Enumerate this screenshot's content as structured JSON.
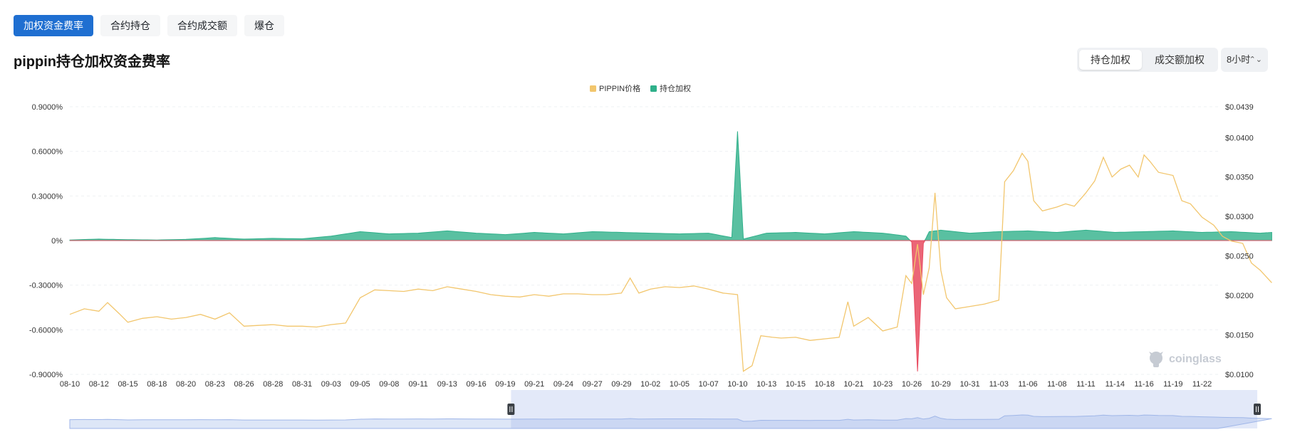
{
  "tabs": [
    "加权资金费率",
    "合约持仓",
    "合约成交额",
    "爆仓"
  ],
  "page_title": "pippin持仓加权资金费率",
  "weight_toggle": {
    "options": [
      "持仓加权",
      "成交额加权"
    ]
  },
  "interval": {
    "value": "8小时",
    "chevron_icon": "chevron-up-down-icon"
  },
  "watermark": {
    "text": "coinglass",
    "icon": "coinglass-logo-icon"
  },
  "colors": {
    "price": "#f2c66d",
    "rate_positive": "#2fb08a",
    "rate_negative": "#e84a5f",
    "active_tab": "#1f6fd1",
    "navigator": "#9fb6e8"
  },
  "chart_data": {
    "type": "area",
    "legend": [
      "PIPPIN价格",
      "持仓加权"
    ],
    "legend_position": "top-center",
    "grid": true,
    "y_left": {
      "ticks": [
        "0.9000%",
        "0.6000%",
        "0.3000%",
        "0%",
        "-0.3000%",
        "-0.6000%",
        "-0.9000%"
      ],
      "range": [
        -0.9,
        0.9
      ],
      "unit": "%"
    },
    "y_right": {
      "ticks": [
        "$0.0439",
        "$0.0400",
        "$0.0350",
        "$0.0300",
        "$0.0250",
        "$0.0200",
        "$0.0150",
        "$0.0100"
      ],
      "range": [
        0.01,
        0.0439
      ],
      "unit": "$"
    },
    "x_labels": [
      "08-10",
      "08-12",
      "08-15",
      "08-18",
      "08-20",
      "08-23",
      "08-26",
      "08-28",
      "08-31",
      "09-03",
      "09-05",
      "09-08",
      "09-11",
      "09-13",
      "09-16",
      "09-19",
      "09-21",
      "09-24",
      "09-27",
      "09-29",
      "10-02",
      "10-05",
      "10-07",
      "10-10",
      "10-13",
      "10-15",
      "10-18",
      "10-21",
      "10-23",
      "10-26",
      "10-29",
      "10-31",
      "11-03",
      "11-06",
      "11-08",
      "11-11",
      "11-14",
      "11-16",
      "11-19",
      "11-22"
    ],
    "series": [
      {
        "name": "PIPPIN价格",
        "axis": "right",
        "points": [
          [
            0,
            0.0176
          ],
          [
            0.5,
            0.0183
          ],
          [
            1,
            0.018
          ],
          [
            1.3,
            0.0191
          ],
          [
            1.7,
            0.0177
          ],
          [
            2,
            0.0166
          ],
          [
            2.5,
            0.0171
          ],
          [
            3,
            0.0173
          ],
          [
            3.5,
            0.017
          ],
          [
            4,
            0.0172
          ],
          [
            4.5,
            0.0176
          ],
          [
            5,
            0.017
          ],
          [
            5.5,
            0.0178
          ],
          [
            6,
            0.0161
          ],
          [
            6.5,
            0.0162
          ],
          [
            7,
            0.0163
          ],
          [
            7.5,
            0.0161
          ],
          [
            8,
            0.0161
          ],
          [
            8.5,
            0.016
          ],
          [
            9,
            0.0163
          ],
          [
            9.5,
            0.0165
          ],
          [
            10,
            0.0197
          ],
          [
            10.5,
            0.0207
          ],
          [
            11,
            0.0206
          ],
          [
            11.5,
            0.0205
          ],
          [
            12,
            0.0208
          ],
          [
            12.5,
            0.0206
          ],
          [
            13,
            0.0211
          ],
          [
            13.5,
            0.0208
          ],
          [
            14,
            0.0205
          ],
          [
            14.5,
            0.0201
          ],
          [
            15,
            0.0199
          ],
          [
            15.5,
            0.0198
          ],
          [
            16,
            0.0201
          ],
          [
            16.5,
            0.0199
          ],
          [
            17,
            0.0202
          ],
          [
            17.5,
            0.0202
          ],
          [
            18,
            0.0201
          ],
          [
            18.5,
            0.0201
          ],
          [
            19,
            0.0203
          ],
          [
            19.3,
            0.0222
          ],
          [
            19.6,
            0.0203
          ],
          [
            20,
            0.0208
          ],
          [
            20.5,
            0.0211
          ],
          [
            21,
            0.021
          ],
          [
            21.5,
            0.0212
          ],
          [
            22,
            0.0208
          ],
          [
            22.5,
            0.0203
          ],
          [
            23,
            0.0201
          ],
          [
            23.2,
            0.0104
          ],
          [
            23.5,
            0.0111
          ],
          [
            23.8,
            0.0149
          ],
          [
            24.2,
            0.0147
          ],
          [
            24.5,
            0.0146
          ],
          [
            25,
            0.0147
          ],
          [
            25.5,
            0.0143
          ],
          [
            26,
            0.0145
          ],
          [
            26.5,
            0.0147
          ],
          [
            26.8,
            0.0192
          ],
          [
            27,
            0.0161
          ],
          [
            27.5,
            0.0172
          ],
          [
            28,
            0.0155
          ],
          [
            28.5,
            0.016
          ],
          [
            28.8,
            0.0225
          ],
          [
            29,
            0.0215
          ],
          [
            29.2,
            0.0265
          ],
          [
            29.4,
            0.0201
          ],
          [
            29.6,
            0.0235
          ],
          [
            29.8,
            0.033
          ],
          [
            30,
            0.0232
          ],
          [
            30.2,
            0.0197
          ],
          [
            30.5,
            0.0183
          ],
          [
            31,
            0.0186
          ],
          [
            31.5,
            0.0189
          ],
          [
            32,
            0.0194
          ],
          [
            32.2,
            0.0344
          ],
          [
            32.5,
            0.0358
          ],
          [
            32.8,
            0.038
          ],
          [
            33,
            0.037
          ],
          [
            33.2,
            0.032
          ],
          [
            33.5,
            0.0307
          ],
          [
            34,
            0.0312
          ],
          [
            34.3,
            0.0316
          ],
          [
            34.6,
            0.0313
          ],
          [
            35,
            0.033
          ],
          [
            35.3,
            0.0345
          ],
          [
            35.6,
            0.0375
          ],
          [
            35.9,
            0.035
          ],
          [
            36.2,
            0.036
          ],
          [
            36.5,
            0.0365
          ],
          [
            36.8,
            0.035
          ],
          [
            37,
            0.0378
          ],
          [
            37.2,
            0.037
          ],
          [
            37.5,
            0.0356
          ],
          [
            38,
            0.0352
          ],
          [
            38.3,
            0.032
          ],
          [
            38.6,
            0.0316
          ],
          [
            39,
            0.0299
          ],
          [
            39.4,
            0.0289
          ],
          [
            39.7,
            0.0275
          ],
          [
            40,
            0.0269
          ],
          [
            40.4,
            0.0266
          ],
          [
            40.7,
            0.0241
          ],
          [
            41,
            0.0232
          ],
          [
            41.4,
            0.0216
          ]
        ]
      },
      {
        "name": "持仓加权",
        "axis": "left",
        "points": [
          [
            0,
            0.004
          ],
          [
            1,
            0.01
          ],
          [
            2,
            0.006
          ],
          [
            3,
            0.004
          ],
          [
            4,
            0.008
          ],
          [
            5,
            0.02
          ],
          [
            6,
            0.01
          ],
          [
            7,
            0.015
          ],
          [
            8,
            0.012
          ],
          [
            9,
            0.03
          ],
          [
            10,
            0.06
          ],
          [
            11,
            0.045
          ],
          [
            12,
            0.05
          ],
          [
            13,
            0.065
          ],
          [
            14,
            0.05
          ],
          [
            15,
            0.04
          ],
          [
            16,
            0.055
          ],
          [
            17,
            0.045
          ],
          [
            18,
            0.06
          ],
          [
            19,
            0.055
          ],
          [
            20,
            0.05
          ],
          [
            21,
            0.045
          ],
          [
            22,
            0.05
          ],
          [
            22.8,
            0.02
          ],
          [
            23,
            0.735
          ],
          [
            23.2,
            0.01
          ],
          [
            24,
            0.05
          ],
          [
            25,
            0.055
          ],
          [
            26,
            0.045
          ],
          [
            27,
            0.06
          ],
          [
            28,
            0.05
          ],
          [
            28.8,
            0.03
          ],
          [
            29,
            -0.01
          ],
          [
            29.2,
            -0.88
          ],
          [
            29.4,
            -0.02
          ],
          [
            29.6,
            0.06
          ],
          [
            30,
            0.07
          ],
          [
            31,
            0.05
          ],
          [
            32,
            0.06
          ],
          [
            33,
            0.065
          ],
          [
            34,
            0.055
          ],
          [
            35,
            0.07
          ],
          [
            36,
            0.055
          ],
          [
            37,
            0.06
          ],
          [
            38,
            0.065
          ],
          [
            39,
            0.055
          ],
          [
            40,
            0.06
          ],
          [
            41,
            0.05
          ],
          [
            41.4,
            0.055
          ]
        ]
      }
    ],
    "navigator": {
      "range_start": "09-19",
      "range_end": "11-22"
    }
  }
}
